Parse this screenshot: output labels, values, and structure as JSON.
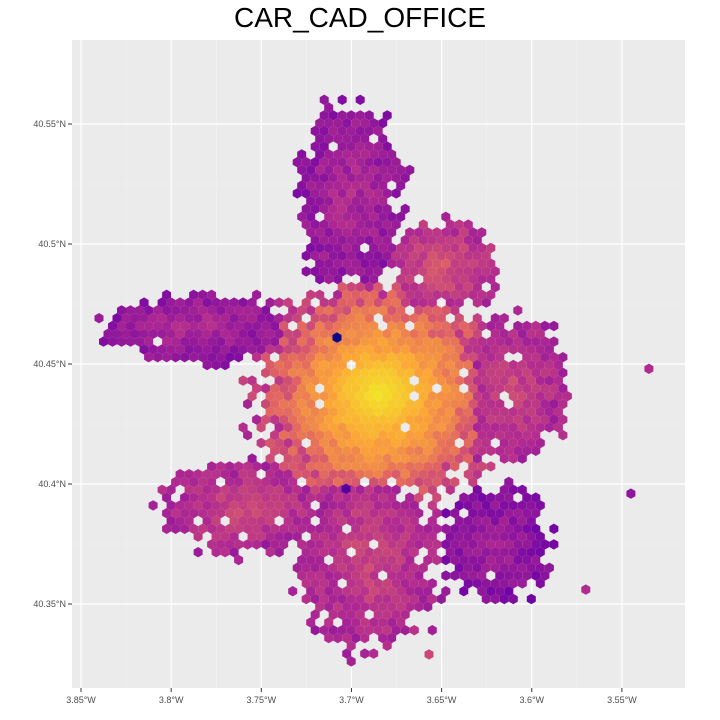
{
  "title": "CAR_CAD_OFFICE",
  "chart_data": {
    "type": "heatmap",
    "subtype": "hexbin-map",
    "title": "CAR_CAD_OFFICE",
    "xlabel": "",
    "ylabel": "",
    "xlim": [
      -3.855,
      -3.515
    ],
    "ylim": [
      40.315,
      40.585
    ],
    "x_ticks": [
      {
        "value": -3.85,
        "label": "3.85°W"
      },
      {
        "value": -3.8,
        "label": "3.8°W"
      },
      {
        "value": -3.75,
        "label": "3.75°W"
      },
      {
        "value": -3.7,
        "label": "3.7°W"
      },
      {
        "value": -3.65,
        "label": "3.65°W"
      },
      {
        "value": -3.6,
        "label": "3.6°W"
      },
      {
        "value": -3.55,
        "label": "3.55°W"
      }
    ],
    "y_ticks": [
      {
        "value": 40.35,
        "label": "40.35°N"
      },
      {
        "value": 40.4,
        "label": "40.4°N"
      },
      {
        "value": 40.45,
        "label": "40.45°N"
      },
      {
        "value": 40.5,
        "label": "40.5°N"
      },
      {
        "value": 40.55,
        "label": "40.55°N"
      }
    ],
    "grid": true,
    "legend": "none",
    "color_scale": [
      "#0d0887",
      "#6a00a8",
      "#b12a90",
      "#e16462",
      "#fca636",
      "#f0f921"
    ],
    "center": {
      "lon": -3.685,
      "lat": 40.437
    },
    "regions": [
      {
        "name": "center",
        "lon": -3.685,
        "lat": 40.437,
        "rlon": 0.07,
        "rlat": 0.05,
        "intensity": 0.95
      },
      {
        "name": "west-lobe",
        "lon": -3.785,
        "lat": 40.465,
        "rlon": 0.05,
        "rlat": 0.015,
        "intensity": 0.35
      },
      {
        "name": "southwest",
        "lon": -3.76,
        "lat": 40.39,
        "rlon": 0.045,
        "rlat": 0.02,
        "intensity": 0.45
      },
      {
        "name": "south",
        "lon": -3.69,
        "lat": 40.37,
        "rlon": 0.04,
        "rlat": 0.04,
        "intensity": 0.45
      },
      {
        "name": "southeast",
        "lon": -3.62,
        "lat": 40.375,
        "rlon": 0.03,
        "rlat": 0.025,
        "intensity": 0.3
      },
      {
        "name": "east",
        "lon": -3.61,
        "lat": 40.44,
        "rlon": 0.03,
        "rlat": 0.03,
        "intensity": 0.45
      },
      {
        "name": "north",
        "lon": -3.7,
        "lat": 40.52,
        "rlon": 0.03,
        "rlat": 0.04,
        "intensity": 0.35
      },
      {
        "name": "northeast",
        "lon": -3.65,
        "lat": 40.49,
        "rlon": 0.03,
        "rlat": 0.02,
        "intensity": 0.5
      }
    ],
    "outliers": [
      {
        "lon": -3.708,
        "lat": 40.461,
        "intensity": 0.0
      },
      {
        "lon": -3.703,
        "lat": 40.398,
        "intensity": 0.15
      },
      {
        "lon": -3.657,
        "lat": 40.329,
        "intensity": 0.5
      },
      {
        "lon": -3.545,
        "lat": 40.396,
        "intensity": 0.3
      },
      {
        "lon": -3.57,
        "lat": 40.356,
        "intensity": 0.4
      },
      {
        "lon": -3.535,
        "lat": 40.448,
        "intensity": 0.4
      }
    ]
  }
}
